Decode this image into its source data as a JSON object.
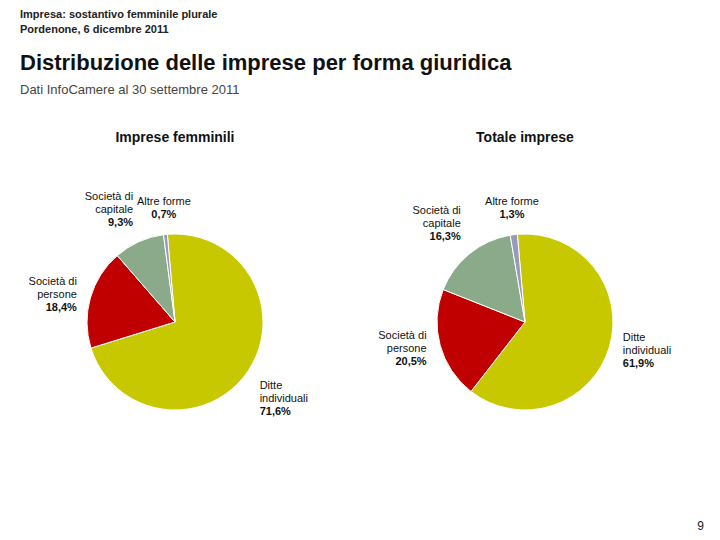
{
  "title": "Distribuzione delle imprese per forma giuridica",
  "subtitle": "Dati InfoCamere al 30 settembre 2011",
  "annotations": [
    "Impresa: sostantivo femminile plurale",
    "Pordenone, 6 dicembre 2011",
    "9"
  ],
  "chart_data": [
    {
      "type": "pie",
      "title": "Imprese femminili",
      "categories": [
        "Ditte individuali",
        "Società di persone",
        "Società di capitale",
        "Altre forme"
      ],
      "values": [
        71.6,
        18.4,
        9.3,
        0.7
      ],
      "value_labels": [
        "71,6%",
        "18,4%",
        "9,3%",
        "0,7%"
      ],
      "colors": [
        "#c8c800",
        "#c00000",
        "#8aaa8a",
        "#9999bb"
      ]
    },
    {
      "type": "pie",
      "title": "Totale imprese",
      "categories": [
        "Ditte individuali",
        "Società di persone",
        "Società di capitale",
        "Altre forme"
      ],
      "values": [
        61.9,
        20.5,
        16.3,
        1.3
      ],
      "value_labels": [
        "61,9%",
        "20,5%",
        "16,3%",
        "1,3%"
      ],
      "colors": [
        "#c8c800",
        "#c00000",
        "#8aaa8a",
        "#9999bb"
      ]
    }
  ]
}
